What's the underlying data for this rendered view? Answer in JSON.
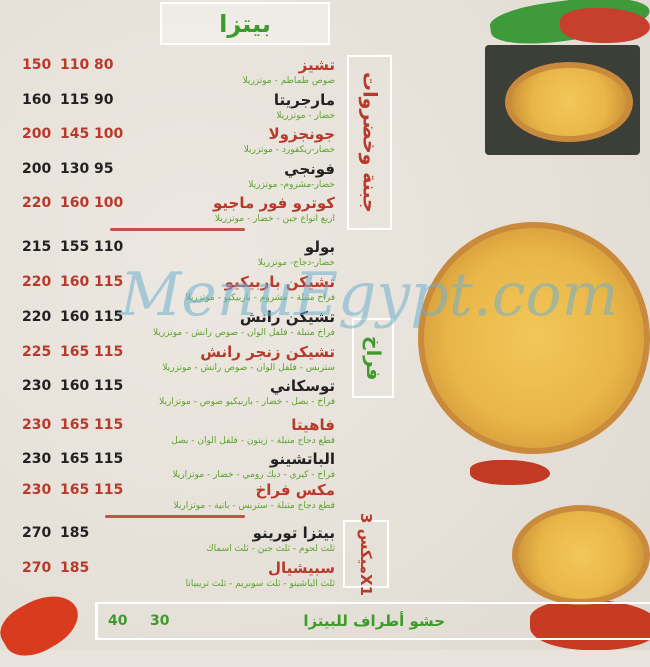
{
  "title": "بيتزا",
  "sections": [
    {
      "label": "جبنة وخضروات",
      "color": "#b83a2b"
    },
    {
      "label": "فراخ",
      "color": "#3d9a2b"
    },
    {
      "label": "ميكس 3X1",
      "color": "#b83a2b"
    }
  ],
  "items": [
    {
      "name": "تشيز",
      "desc": "صوص طماطم - موتزريلا",
      "prices": [
        "150",
        "110",
        "80"
      ],
      "style": "red"
    },
    {
      "name": "مارجريتا",
      "desc": "خضار - موتزريلا",
      "prices": [
        "160",
        "115",
        "90"
      ],
      "style": "blk"
    },
    {
      "name": "جونجزولا",
      "desc": "خضار-ريكفورد - موتزريلا",
      "prices": [
        "200",
        "145",
        "100"
      ],
      "style": "red"
    },
    {
      "name": "فونجي",
      "desc": "خضار-مشروم- موتزريلا",
      "prices": [
        "200",
        "130",
        "95"
      ],
      "style": "blk"
    },
    {
      "name": "كوترو فور ماجيو",
      "desc": "اربع انواع جبن - خضار - موتزريلا",
      "prices": [
        "220",
        "160",
        "100"
      ],
      "style": "red"
    },
    {
      "name": "بولو",
      "desc": "خضار-دجاج- موتزريلا",
      "prices": [
        "215",
        "155",
        "110"
      ],
      "style": "blk"
    },
    {
      "name": "تشيكن باربيكيو",
      "desc": "فراخ متبلة - مشروم - باربيكيو - موتزريلا",
      "prices": [
        "220",
        "160",
        "115"
      ],
      "style": "red"
    },
    {
      "name": "تشيكن رانش",
      "desc": "فراخ متبلة - فلفل الوان - صوص رانش - موتزريلا",
      "prices": [
        "220",
        "160",
        "115"
      ],
      "style": "blk"
    },
    {
      "name": "تشيكن زنجر رانش",
      "desc": "ستربس - فلفل الوان - صوص رانش - موتزريلا",
      "prices": [
        "225",
        "165",
        "115"
      ],
      "style": "red"
    },
    {
      "name": "توسكاني",
      "desc": "فراخ - بصل - خضار - باربيكيو صوص - موتزاريلا",
      "prices": [
        "230",
        "160",
        "115"
      ],
      "style": "blk"
    },
    {
      "name": "فاهيتا",
      "desc": "قطع دجاج متبلة - زيتون - فلفل الوان - بصل",
      "prices": [
        "230",
        "165",
        "115"
      ],
      "style": "red"
    },
    {
      "name": "الباتشينو",
      "desc": "فراخ - كيري - ديك رومي - خضار - موتزاريلا",
      "prices": [
        "230",
        "165",
        "115"
      ],
      "style": "blk"
    },
    {
      "name": "مكس فراخ",
      "desc": "قطع دجاج متبلة - ستربس - بانية - موتزاريلا",
      "prices": [
        "230",
        "165",
        "115"
      ],
      "style": "red"
    },
    {
      "name": "بيتزا تورينو",
      "desc": "ثلث لحوم - ثلث جبن - ثلث اسماك",
      "prices": [
        "270",
        "185"
      ],
      "style": "blk"
    },
    {
      "name": "سبيشيال",
      "desc": "ثلث الباشينو - ثلث سوبريم - ثلث تريبيانا",
      "prices": [
        "270",
        "185"
      ],
      "style": "red"
    }
  ],
  "crust": {
    "label": "حشو أطراف للبيتزا",
    "prices": [
      "40",
      "30"
    ]
  },
  "watermark": "MenuEgypt.com",
  "colors": {
    "red": "#b83a2b",
    "green": "#3d9a2b",
    "background": "#e8e4dd"
  }
}
